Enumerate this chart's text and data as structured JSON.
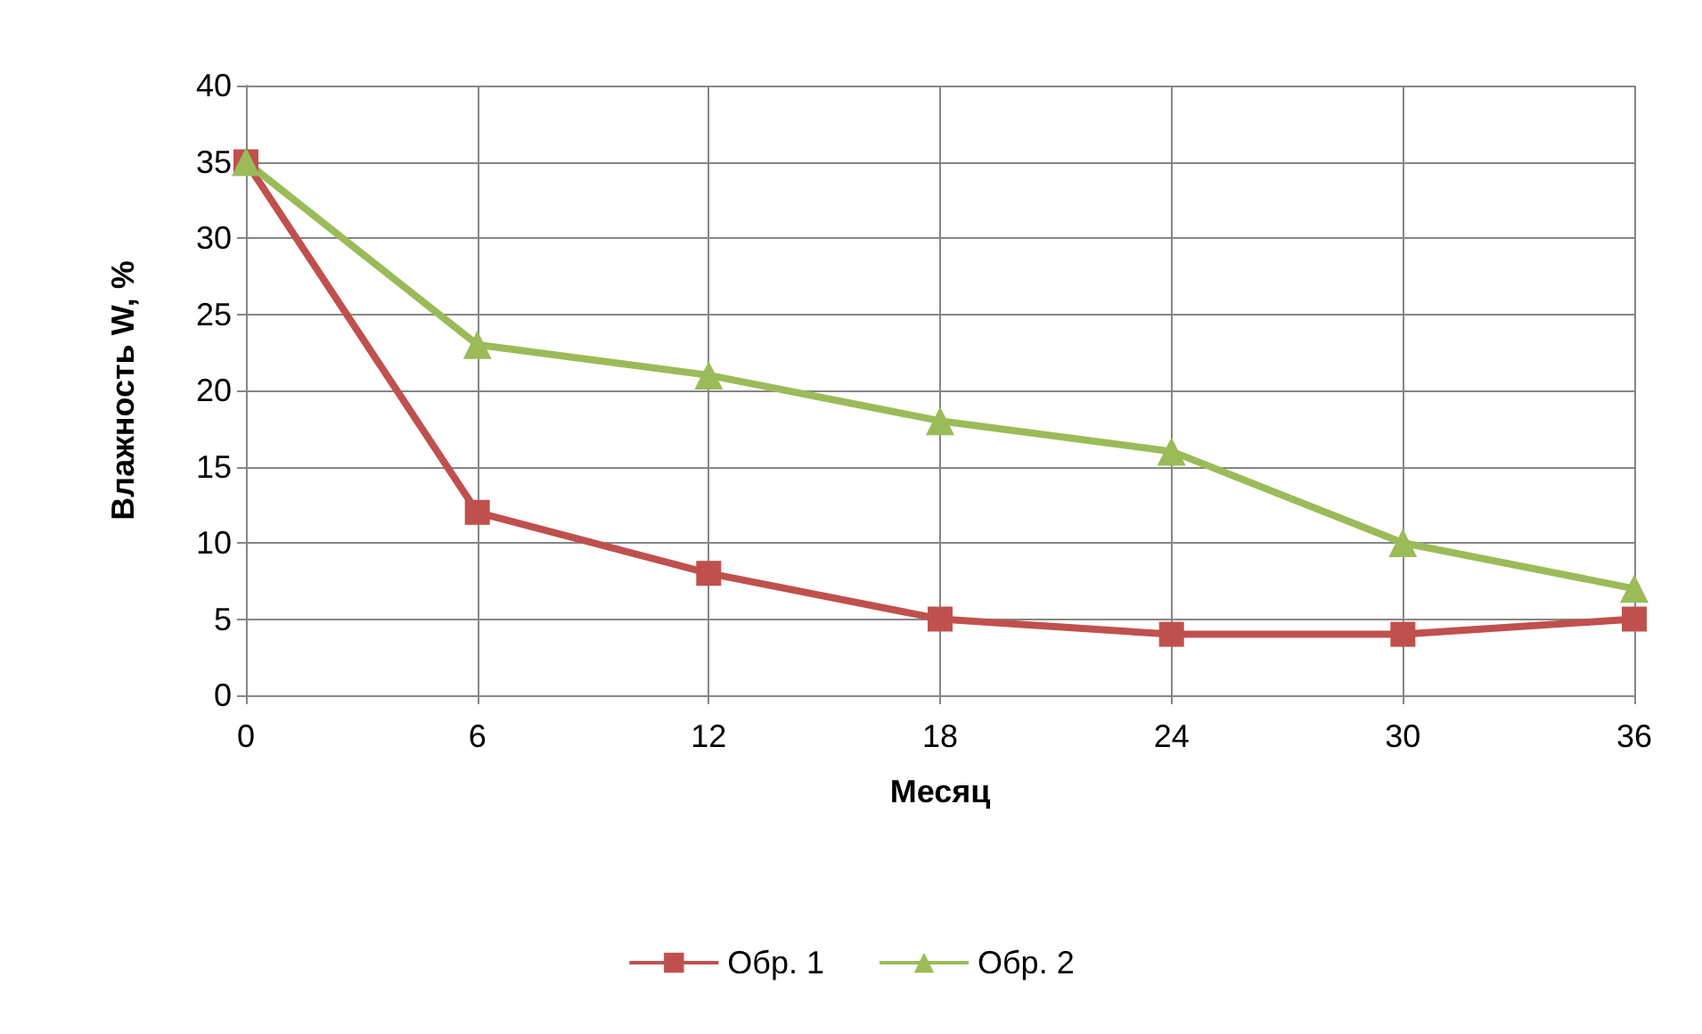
{
  "chart_data": {
    "type": "line",
    "xlabel": "Месяц",
    "ylabel": "Влажность W, %",
    "x": [
      0,
      6,
      12,
      18,
      24,
      30,
      36
    ],
    "xlim": [
      0,
      36
    ],
    "xticks": [
      0,
      6,
      12,
      18,
      24,
      30,
      36
    ],
    "ylim": [
      0,
      40
    ],
    "yticks": [
      0,
      5,
      10,
      15,
      20,
      25,
      30,
      35,
      40
    ],
    "grid": true,
    "legend": "bottom",
    "series": [
      {
        "name": "Обр. 1",
        "color": "#c0504d",
        "marker": "square",
        "values": [
          35,
          12,
          8,
          5,
          4,
          4,
          5
        ]
      },
      {
        "name": "Обр. 2",
        "color": "#9bbb59",
        "marker": "triangle",
        "values": [
          35,
          23,
          21,
          18,
          16,
          10,
          7
        ]
      }
    ]
  }
}
